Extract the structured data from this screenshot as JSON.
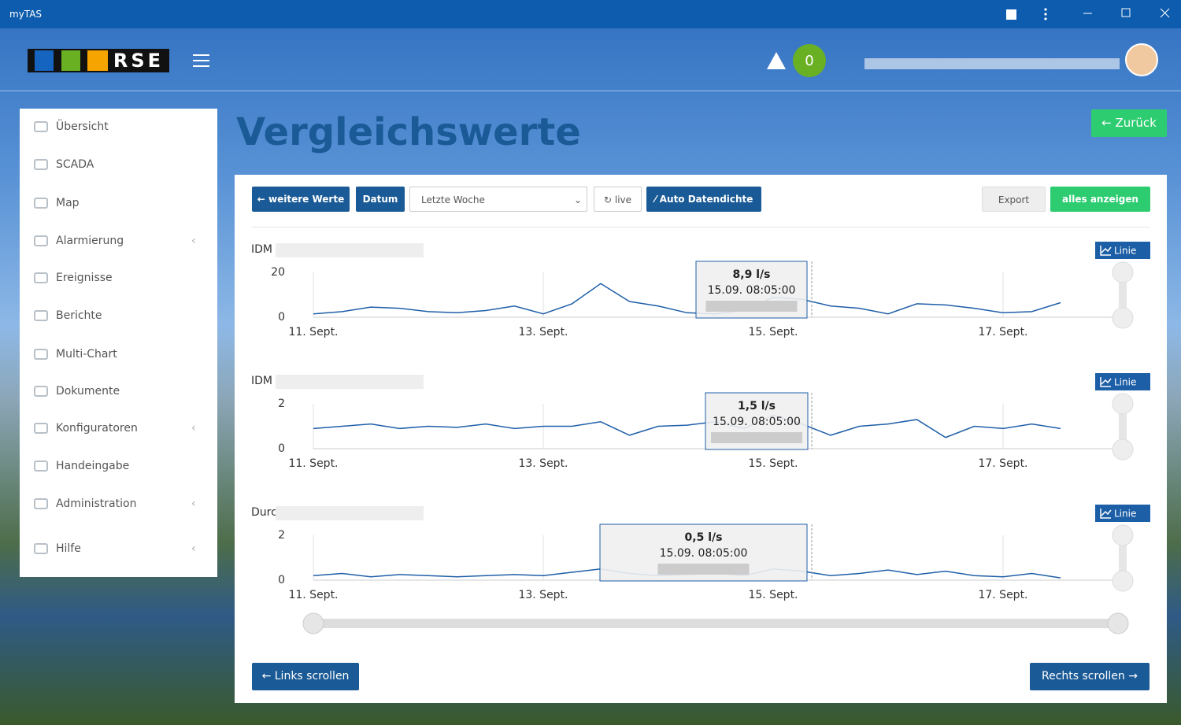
{
  "window": {
    "title": "myTAS"
  },
  "header": {
    "logo": "RSE",
    "alarm_count": 0
  },
  "sidebar": {
    "items": [
      "Übersicht",
      "SCADA",
      "Map",
      "Alarmierung",
      "Ereignisse",
      "Berichte",
      "Multi-Chart",
      "Dokumente",
      "Konfiguratoren",
      "Handeingabe",
      "Administration",
      "Hilfe"
    ]
  },
  "page": {
    "title": "Vergleichswerte",
    "back": "Zurück"
  },
  "toolbar": {
    "more": "weitere Werte",
    "date": "Datum",
    "range": "Letzte Woche",
    "live": "live",
    "density": "Auto Datendichte",
    "export": "Export",
    "show_all": "alles anzeigen"
  },
  "chart_data": [
    {
      "type": "line",
      "title": "IDM",
      "mode": "Linie",
      "color": "#1f5fa8",
      "x": [
        11,
        11.25,
        11.5,
        11.75,
        12,
        12.25,
        12.5,
        12.75,
        13,
        13.25,
        13.5,
        13.75,
        14,
        14.25,
        14.5,
        14.75,
        15,
        15.25,
        15.5,
        15.75,
        16,
        16.25,
        16.5,
        16.75,
        17,
        17.25,
        17.5
      ],
      "values": [
        1.5,
        2.5,
        4.5,
        4,
        2.5,
        2,
        3,
        5,
        1.5,
        6,
        15,
        7,
        5,
        2,
        1.5,
        3,
        8.9,
        8,
        5,
        4,
        1.5,
        6,
        5.5,
        4,
        2,
        2.5,
        6.5
      ],
      "xlim": [
        11,
        18
      ],
      "ylim": [
        0,
        20
      ],
      "yticks": [
        0,
        20
      ],
      "xticks": [
        {
          "value": 11,
          "label": "11. Sept."
        },
        {
          "value": 13,
          "label": "13. Sept."
        },
        {
          "value": 15,
          "label": "15. Sept."
        },
        {
          "value": 17,
          "label": "17. Sept."
        }
      ],
      "tooltip": {
        "value": "8,9 l/s",
        "time": "15.09. 08:05:00"
      }
    },
    {
      "type": "line",
      "title": "IDM",
      "mode": "Linie",
      "color": "#1f5fa8",
      "x": [
        11,
        11.25,
        11.5,
        11.75,
        12,
        12.25,
        12.5,
        12.75,
        13,
        13.25,
        13.5,
        13.75,
        14,
        14.25,
        14.5,
        14.75,
        15,
        15.25,
        15.5,
        15.75,
        16,
        16.25,
        16.5,
        16.75,
        17,
        17.25,
        17.5
      ],
      "values": [
        0.9,
        1,
        1.1,
        0.9,
        1,
        0.95,
        1.1,
        0.9,
        1,
        1,
        1.2,
        0.6,
        1,
        1.05,
        1.2,
        0.9,
        1.5,
        1.1,
        0.6,
        1,
        1.1,
        1.3,
        0.5,
        1,
        0.9,
        1.1,
        0.9
      ],
      "xlim": [
        11,
        18
      ],
      "ylim": [
        0,
        2
      ],
      "yticks": [
        0,
        2
      ],
      "xticks": [
        {
          "value": 11,
          "label": "11. Sept."
        },
        {
          "value": 13,
          "label": "13. Sept."
        },
        {
          "value": 15,
          "label": "15. Sept."
        },
        {
          "value": 17,
          "label": "17. Sept."
        }
      ],
      "tooltip": {
        "value": "1,5 l/s",
        "time": "15.09. 08:05:00"
      }
    },
    {
      "type": "line",
      "title": "Durchfluss",
      "mode": "Linie",
      "color": "#1f5fa8",
      "x": [
        11,
        11.25,
        11.5,
        11.75,
        12,
        12.25,
        12.5,
        12.75,
        13,
        13.25,
        13.5,
        13.75,
        14,
        14.25,
        14.5,
        14.75,
        15,
        15.25,
        15.5,
        15.75,
        16,
        16.25,
        16.5,
        16.75,
        17,
        17.25,
        17.5
      ],
      "values": [
        0.2,
        0.3,
        0.15,
        0.25,
        0.2,
        0.15,
        0.2,
        0.25,
        0.2,
        0.35,
        0.5,
        0.3,
        0.2,
        0.25,
        0.3,
        0.2,
        0.5,
        0.4,
        0.2,
        0.3,
        0.45,
        0.25,
        0.4,
        0.2,
        0.15,
        0.3,
        0.1
      ],
      "xlim": [
        11,
        18
      ],
      "ylim": [
        0,
        2
      ],
      "yticks": [
        0,
        2
      ],
      "xticks": [
        {
          "value": 11,
          "label": "11. Sept."
        },
        {
          "value": 13,
          "label": "13. Sept."
        },
        {
          "value": 15,
          "label": "15. Sept."
        },
        {
          "value": 17,
          "label": "17. Sept."
        }
      ],
      "tooltip": {
        "value": "0,5 l/s",
        "time": "15.09. 08:05:00"
      }
    }
  ],
  "footer": {
    "left": "Links scrollen",
    "right": "Rechts scrollen"
  }
}
